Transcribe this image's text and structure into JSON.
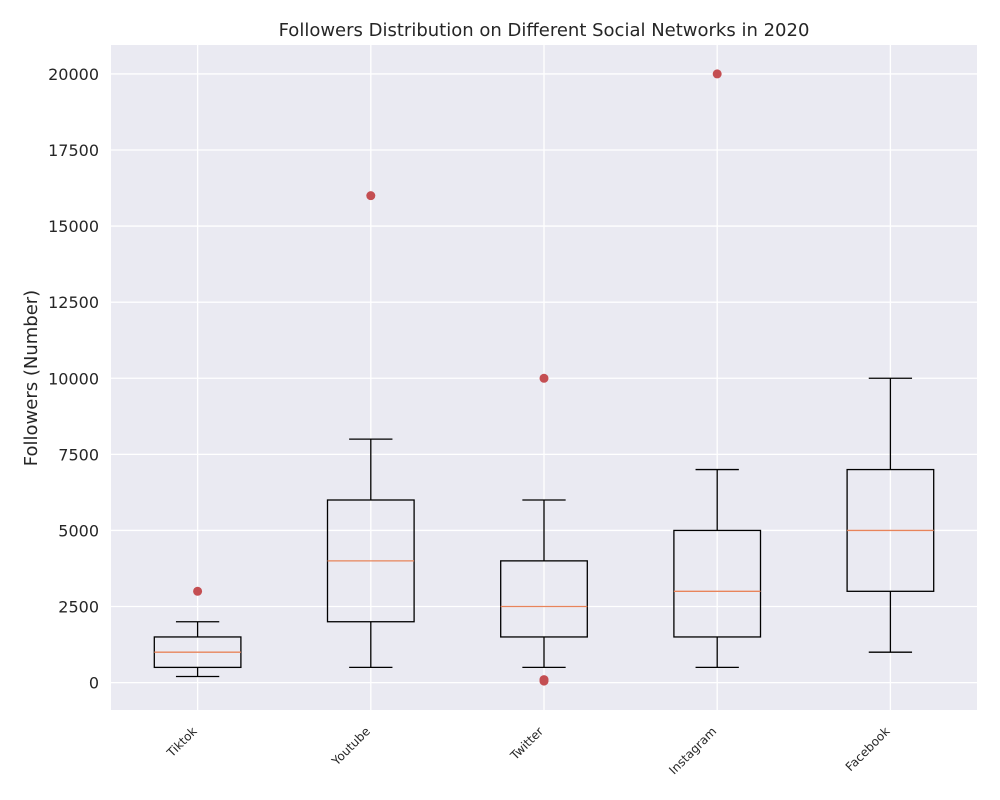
{
  "chart_data": {
    "type": "box",
    "title": "Followers Distribution on Different Social Networks in 2020",
    "xlabel": "",
    "ylabel": "Followers (Number)",
    "ylim": [
      -900,
      20950
    ],
    "yticks": [
      0,
      2500,
      5000,
      7500,
      10000,
      12500,
      15000,
      17500,
      20000
    ],
    "grid": true,
    "colors": {
      "background": "#eaeaf2",
      "grid": "#ffffff",
      "box": "#000000",
      "median": "#e8845b",
      "outlier": "#c44e52"
    },
    "categories": [
      "Tiktok",
      "Youtube",
      "Twitter",
      "Instagram",
      "Facebook"
    ],
    "boxes": [
      {
        "category": "Tiktok",
        "whisker_low": 200,
        "q1": 500,
        "median": 1000,
        "q3": 1500,
        "whisker_high": 2000,
        "outliers": [
          3000
        ]
      },
      {
        "category": "Youtube",
        "whisker_low": 500,
        "q1": 2000,
        "median": 4000,
        "q3": 6000,
        "whisker_high": 8000,
        "outliers": [
          16000
        ]
      },
      {
        "category": "Twitter",
        "whisker_low": 500,
        "q1": 1500,
        "median": 2500,
        "q3": 4000,
        "whisker_high": 6000,
        "outliers": [
          10000,
          100,
          50
        ]
      },
      {
        "category": "Instagram",
        "whisker_low": 500,
        "q1": 1500,
        "median": 3000,
        "q3": 5000,
        "whisker_high": 7000,
        "outliers": [
          20000
        ]
      },
      {
        "category": "Facebook",
        "whisker_low": 1000,
        "q1": 3000,
        "median": 5000,
        "q3": 7000,
        "whisker_high": 10000,
        "outliers": []
      }
    ]
  }
}
